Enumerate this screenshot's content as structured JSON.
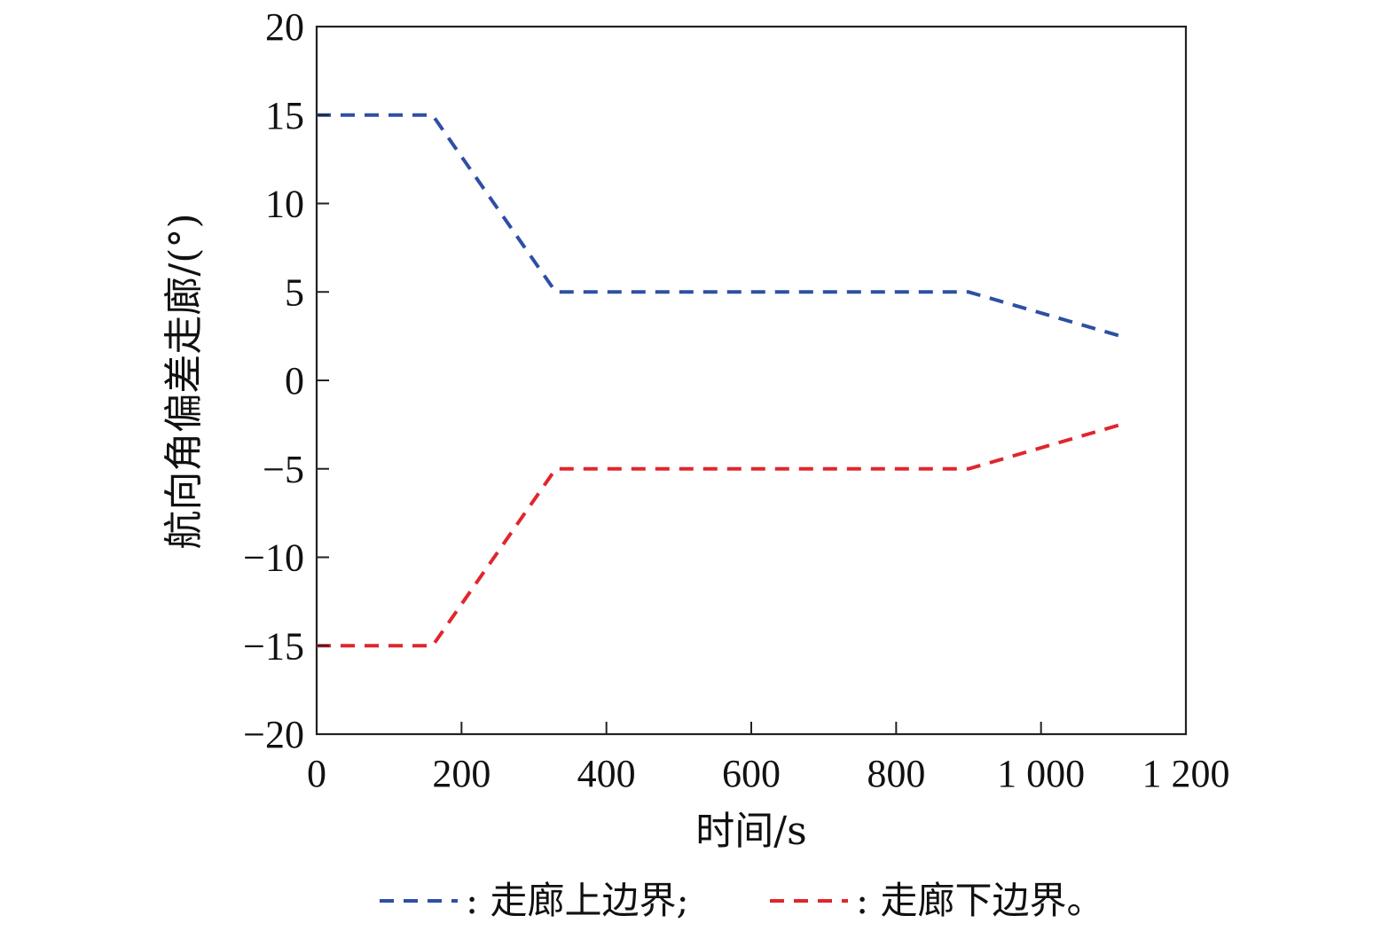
{
  "chart_data": {
    "type": "line",
    "xlabel": "时间/s",
    "ylabel": "航向角偏差走廊/(°)",
    "xlim": [
      0,
      1200
    ],
    "ylim": [
      -20,
      20
    ],
    "x_ticks": [
      0,
      200,
      400,
      600,
      800,
      1000,
      1200
    ],
    "x_tick_labels": [
      "0",
      "200",
      "400",
      "600",
      "800",
      "1 000",
      "1 200"
    ],
    "y_ticks": [
      20,
      15,
      10,
      5,
      0,
      -5,
      -10,
      -15,
      -20
    ],
    "y_tick_labels": [
      "20",
      "15",
      "10",
      "5",
      "0",
      "−5",
      "−10",
      "−15",
      "−20"
    ],
    "grid": false,
    "legend_position": "bottom",
    "series": [
      {
        "name": "走廊上边界",
        "legend_label": ": 走廊上边界;",
        "color": "#2e4fa3",
        "style": "dashed",
        "points": [
          [
            0,
            15
          ],
          [
            160,
            15
          ],
          [
            330,
            5
          ],
          [
            900,
            5
          ],
          [
            1110,
            2.5
          ]
        ]
      },
      {
        "name": "走廊下边界",
        "legend_label": ": 走廊下边界。",
        "color": "#e0262e",
        "style": "dashed",
        "points": [
          [
            0,
            -15
          ],
          [
            160,
            -15
          ],
          [
            330,
            -5
          ],
          [
            900,
            -5
          ],
          [
            1110,
            -2.5
          ]
        ]
      }
    ]
  }
}
